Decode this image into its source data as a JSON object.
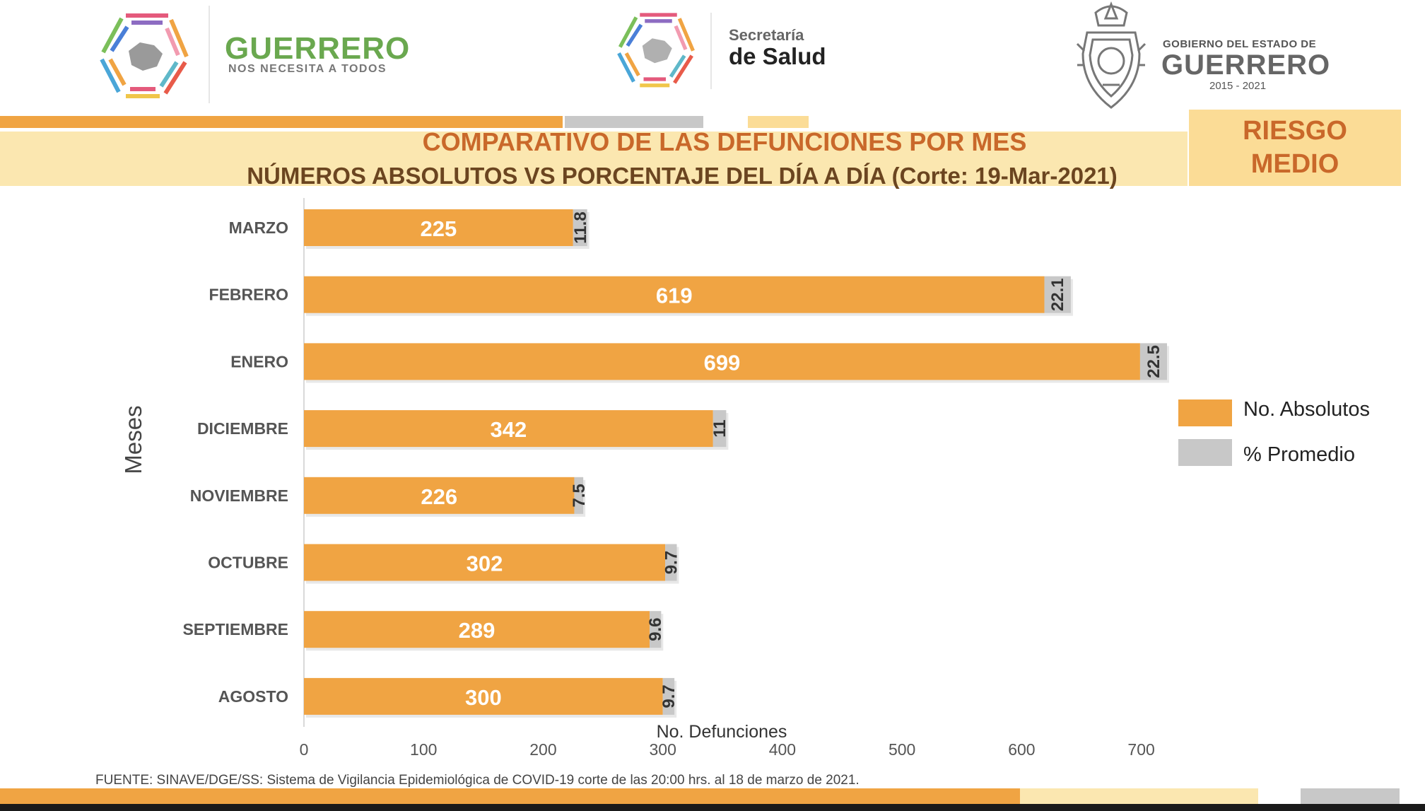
{
  "header": {
    "left_logo": {
      "brand": "GUERRERO",
      "tagline": "NOS NECESITA A TODOS"
    },
    "center_logo": {
      "line1": "Secretaría",
      "line2": "de Salud"
    },
    "right_logo": {
      "line1": "GOBIERNO DEL ESTADO DE",
      "line2": "GUERRERO",
      "years": "2015 - 2021"
    }
  },
  "title": {
    "line1": "COMPARATIVO DE LAS DEFUNCIONES POR MES",
    "line2": "NÚMEROS ABSOLUTOS VS PORCENTAJE DEL DÍA A DÍA   (Corte: 19-Mar-2021)"
  },
  "risk_badge": {
    "line1": "RIESGO",
    "line2": "MEDIO"
  },
  "colors": {
    "absolutos": "#f0a443",
    "promedio": "#c8c8c8",
    "title_orange": "#c9682a",
    "band": "#fbe7b0",
    "risk_bg": "#fbdc96",
    "stripe_orange": "#f0a443",
    "stripe_gray": "#c8c8c8"
  },
  "chart_data": {
    "type": "bar",
    "orientation": "horizontal",
    "stacked": true,
    "categories": [
      "MARZO",
      "FEBRERO",
      "ENERO",
      "DICIEMBRE",
      "NOVIEMBRE",
      "OCTUBRE",
      "SEPTIEMBRE",
      "AGOSTO"
    ],
    "series": [
      {
        "name": "No. Absolutos",
        "values": [
          225,
          619,
          699,
          342,
          226,
          302,
          289,
          300
        ]
      },
      {
        "name": "% Promedio",
        "values": [
          11.8,
          22.1,
          22.5,
          11,
          7.5,
          9.7,
          9.6,
          9.7
        ]
      }
    ],
    "xlabel": "No. Defunciones",
    "ylabel": "Meses",
    "xlim": [
      0,
      700
    ],
    "xticks": [
      0,
      100,
      200,
      300,
      400,
      500,
      600,
      700
    ],
    "legend_position": "right",
    "grid": false
  },
  "source": "FUENTE: SINAVE/DGE/SS: Sistema de Vigilancia Epidemiológica de COVID-19 corte de las 20:00 hrs. al 18 de  marzo de 2021."
}
